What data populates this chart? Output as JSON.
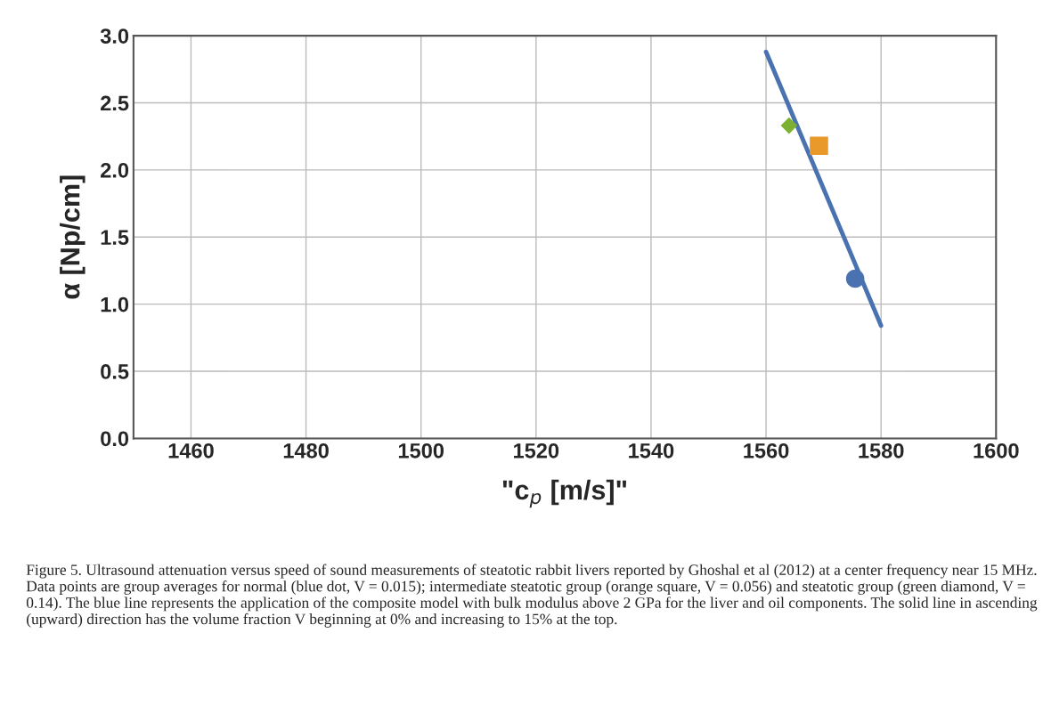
{
  "chart_data": {
    "type": "scatter",
    "xlabel": "\"c$_{p}$ [m/s]\"",
    "ylabel": "α [Np/cm]",
    "xlim": [
      1450,
      1600
    ],
    "xticks": [
      1460,
      1480,
      1500,
      1520,
      1540,
      1560,
      1580,
      1600
    ],
    "ylim": [
      0,
      3
    ],
    "yticks": [
      {
        "value": 0,
        "label": "0.0"
      },
      0.5,
      {
        "value": 1,
        "label": "1.0"
      },
      1.5,
      {
        "value": 2,
        "label": "2.0"
      },
      2.5,
      {
        "value": 3,
        "label": "3.0"
      }
    ],
    "grid": true,
    "series": [
      {
        "type": "line",
        "color": "#4a72b0",
        "x": [
          1560,
          1580
        ],
        "values": [
          2.88,
          0.84
        ],
        "marker": "none",
        "line_style": "solid"
      },
      {
        "color": "#7cb030",
        "x": [
          1564
        ],
        "values": [
          2.33
        ],
        "marker": "diamond"
      },
      {
        "color": "#e8992a",
        "x": [
          1569.2
        ],
        "values": [
          2.18
        ],
        "marker": "square"
      },
      {
        "color": "#4a72b0",
        "x": [
          1575.5
        ],
        "values": [
          1.19
        ],
        "marker": "circle"
      }
    ],
    "annotations": [
      "Figure 5. Ultrasound attenuation versus speed of sound measurements of steatotic rabbit livers reported by Ghoshal et al (2012) at a center frequency near 15 MHz. Data points are group averages for normal (blue dot, V = 0.015); intermediate steatotic group (orange square, V = 0.056) and steatotic group (green diamond, V = 0.14). The blue line represents the application of the composite model with bulk modulus above 2 GPa for the liver and oil components. The solid line in ascending (upward) direction has the volume fraction V beginning at 0% and increasing to 15% at the top."
    ]
  }
}
